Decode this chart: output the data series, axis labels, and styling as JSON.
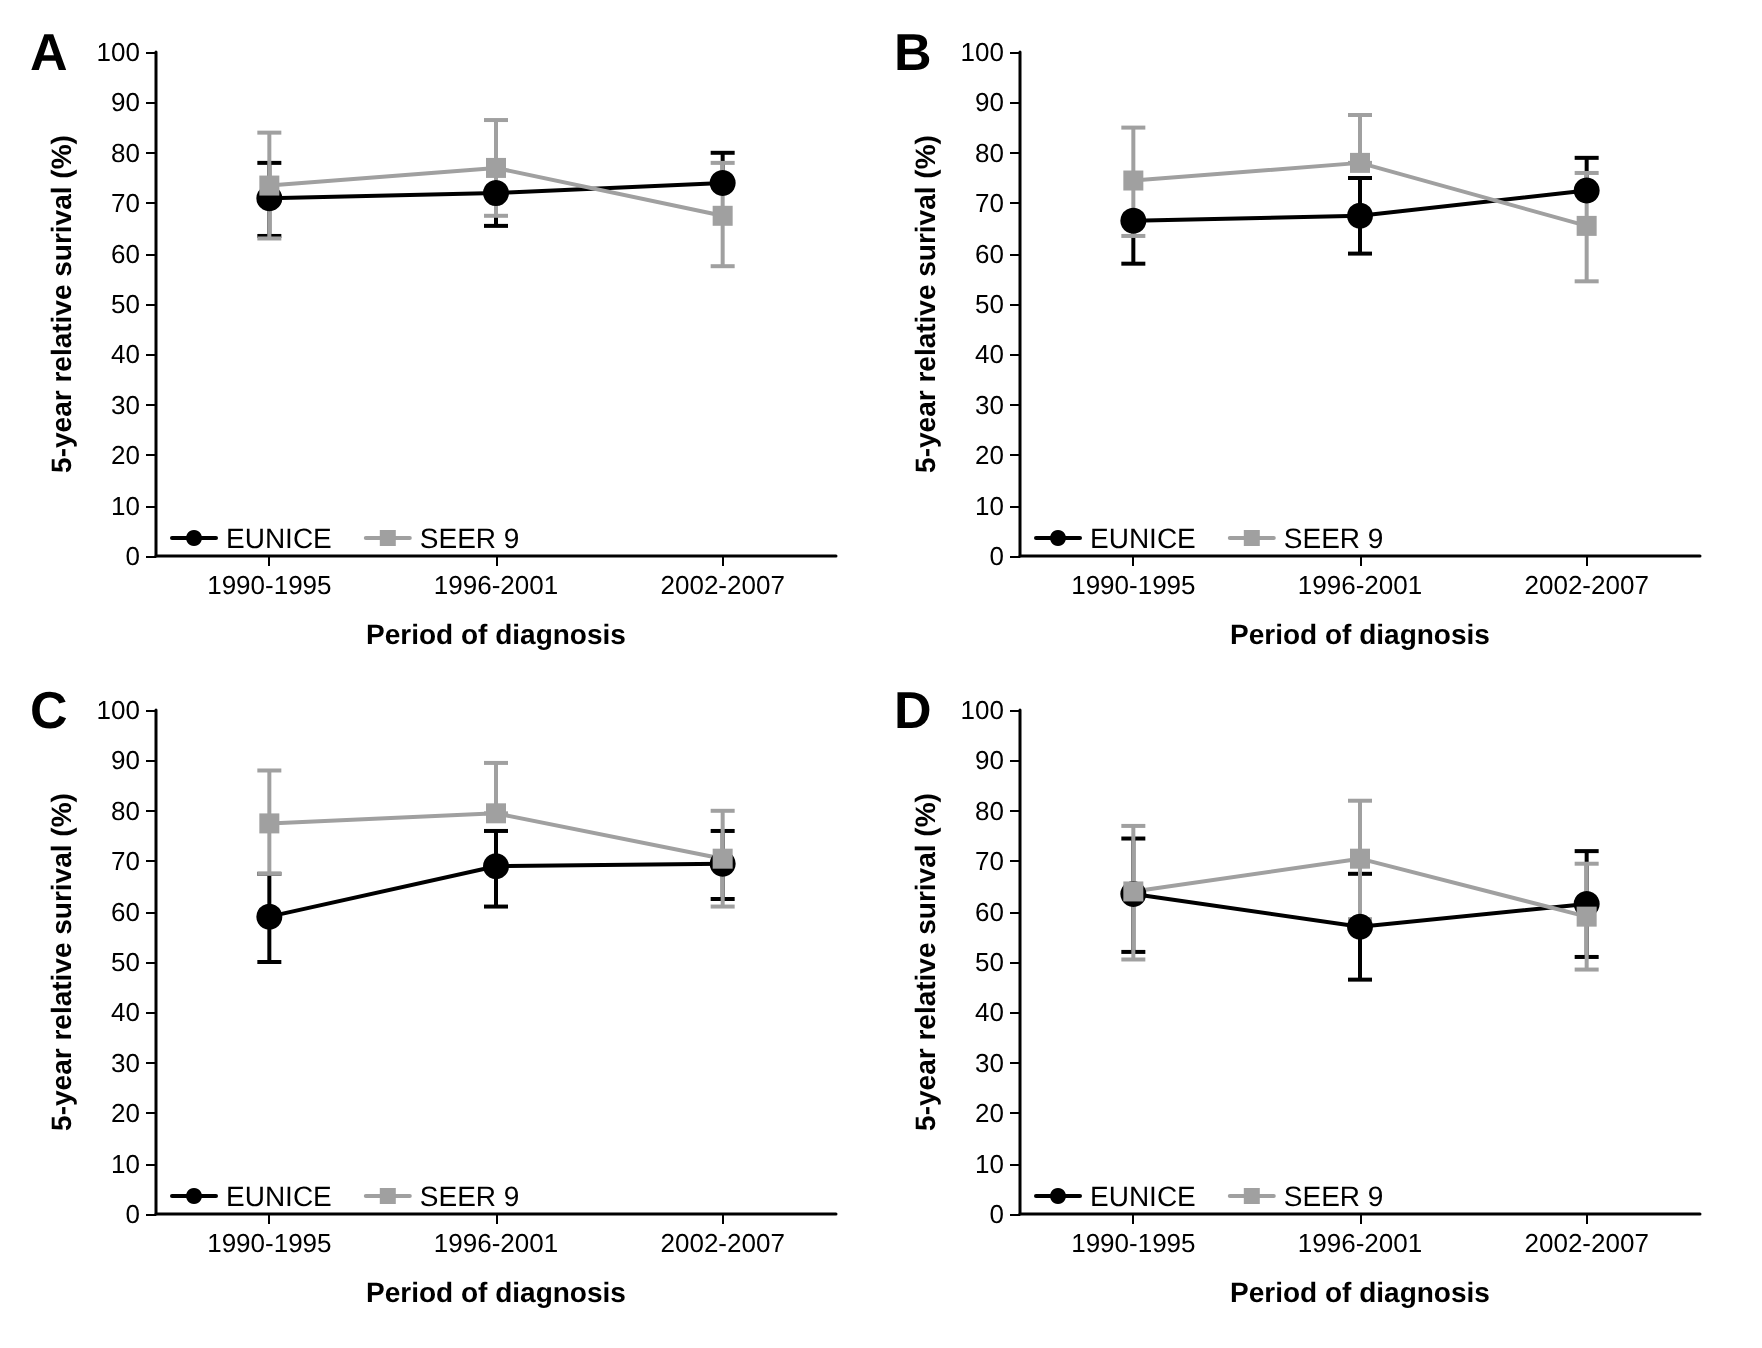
{
  "chart_data": [
    {
      "type": "line",
      "title": "A",
      "xlabel": "Period of diagnosis",
      "ylabel": "5-year relative surival (%)",
      "categories": [
        "1990-1995",
        "1996-2001",
        "2002-2007"
      ],
      "ylim": [
        0,
        100
      ],
      "yticks": [
        0,
        10,
        20,
        30,
        40,
        50,
        60,
        70,
        80,
        90,
        100
      ],
      "legend": "bottom left",
      "grid": false,
      "series": [
        {
          "name": "EUNICE",
          "color": "#000000",
          "marker": "circle",
          "values": [
            71,
            72,
            74
          ],
          "errors": [
            [
              63.5,
              78
            ],
            [
              65.5,
              72
            ],
            [
              74,
              80
            ]
          ]
        },
        {
          "name": "SEER 9",
          "color": "#a0a0a0",
          "marker": "square",
          "values": [
            73.5,
            77,
            67.5
          ],
          "errors": [
            [
              63,
              84
            ],
            [
              67.5,
              86.5
            ],
            [
              57.5,
              78
            ]
          ]
        }
      ]
    },
    {
      "type": "line",
      "title": "B",
      "xlabel": "Period of diagnosis",
      "ylabel": "5-year relative surival (%)",
      "categories": [
        "1990-1995",
        "1996-2001",
        "2002-2007"
      ],
      "ylim": [
        0,
        100
      ],
      "yticks": [
        0,
        10,
        20,
        30,
        40,
        50,
        60,
        70,
        80,
        90,
        100
      ],
      "legend": "bottom left",
      "grid": false,
      "series": [
        {
          "name": "EUNICE",
          "color": "#000000",
          "marker": "circle",
          "values": [
            66.5,
            67.5,
            72.5
          ],
          "errors": [
            [
              58,
              66.5
            ],
            [
              60,
              75
            ],
            [
              72.5,
              79
            ]
          ]
        },
        {
          "name": "SEER 9",
          "color": "#a0a0a0",
          "marker": "square",
          "values": [
            74.5,
            78,
            65.5
          ],
          "errors": [
            [
              63.5,
              85
            ],
            [
              78,
              87.5
            ],
            [
              54.5,
              76
            ]
          ]
        }
      ]
    },
    {
      "type": "line",
      "title": "C",
      "xlabel": "Period of diagnosis",
      "ylabel": "5-year relative surival (%)",
      "categories": [
        "1990-1995",
        "1996-2001",
        "2002-2007"
      ],
      "ylim": [
        0,
        100
      ],
      "yticks": [
        0,
        10,
        20,
        30,
        40,
        50,
        60,
        70,
        80,
        90,
        100
      ],
      "legend": "bottom left",
      "grid": false,
      "series": [
        {
          "name": "EUNICE",
          "color": "#000000",
          "marker": "circle",
          "values": [
            59,
            69,
            69.5
          ],
          "errors": [
            [
              50,
              67.5
            ],
            [
              61,
              76
            ],
            [
              62.5,
              76
            ]
          ]
        },
        {
          "name": "SEER 9",
          "color": "#a0a0a0",
          "marker": "square",
          "values": [
            77.5,
            79.5,
            70.5
          ],
          "errors": [
            [
              67.5,
              88
            ],
            [
              79.5,
              89.5
            ],
            [
              61,
              80
            ]
          ]
        }
      ]
    },
    {
      "type": "line",
      "title": "D",
      "xlabel": "Period of diagnosis",
      "ylabel": "5-year relative surival (%)",
      "categories": [
        "1990-1995",
        "1996-2001",
        "2002-2007"
      ],
      "ylim": [
        0,
        100
      ],
      "yticks": [
        0,
        10,
        20,
        30,
        40,
        50,
        60,
        70,
        80,
        90,
        100
      ],
      "legend": "bottom left",
      "grid": false,
      "series": [
        {
          "name": "EUNICE",
          "color": "#000000",
          "marker": "circle",
          "values": [
            63.5,
            57,
            61.5
          ],
          "errors": [
            [
              52,
              74.5
            ],
            [
              46.5,
              67.5
            ],
            [
              51,
              72
            ]
          ]
        },
        {
          "name": "SEER 9",
          "color": "#a0a0a0",
          "marker": "square",
          "values": [
            64,
            70.5,
            59
          ],
          "errors": [
            [
              50.5,
              77
            ],
            [
              58.5,
              82
            ],
            [
              48.5,
              69.5
            ]
          ]
        }
      ]
    }
  ]
}
